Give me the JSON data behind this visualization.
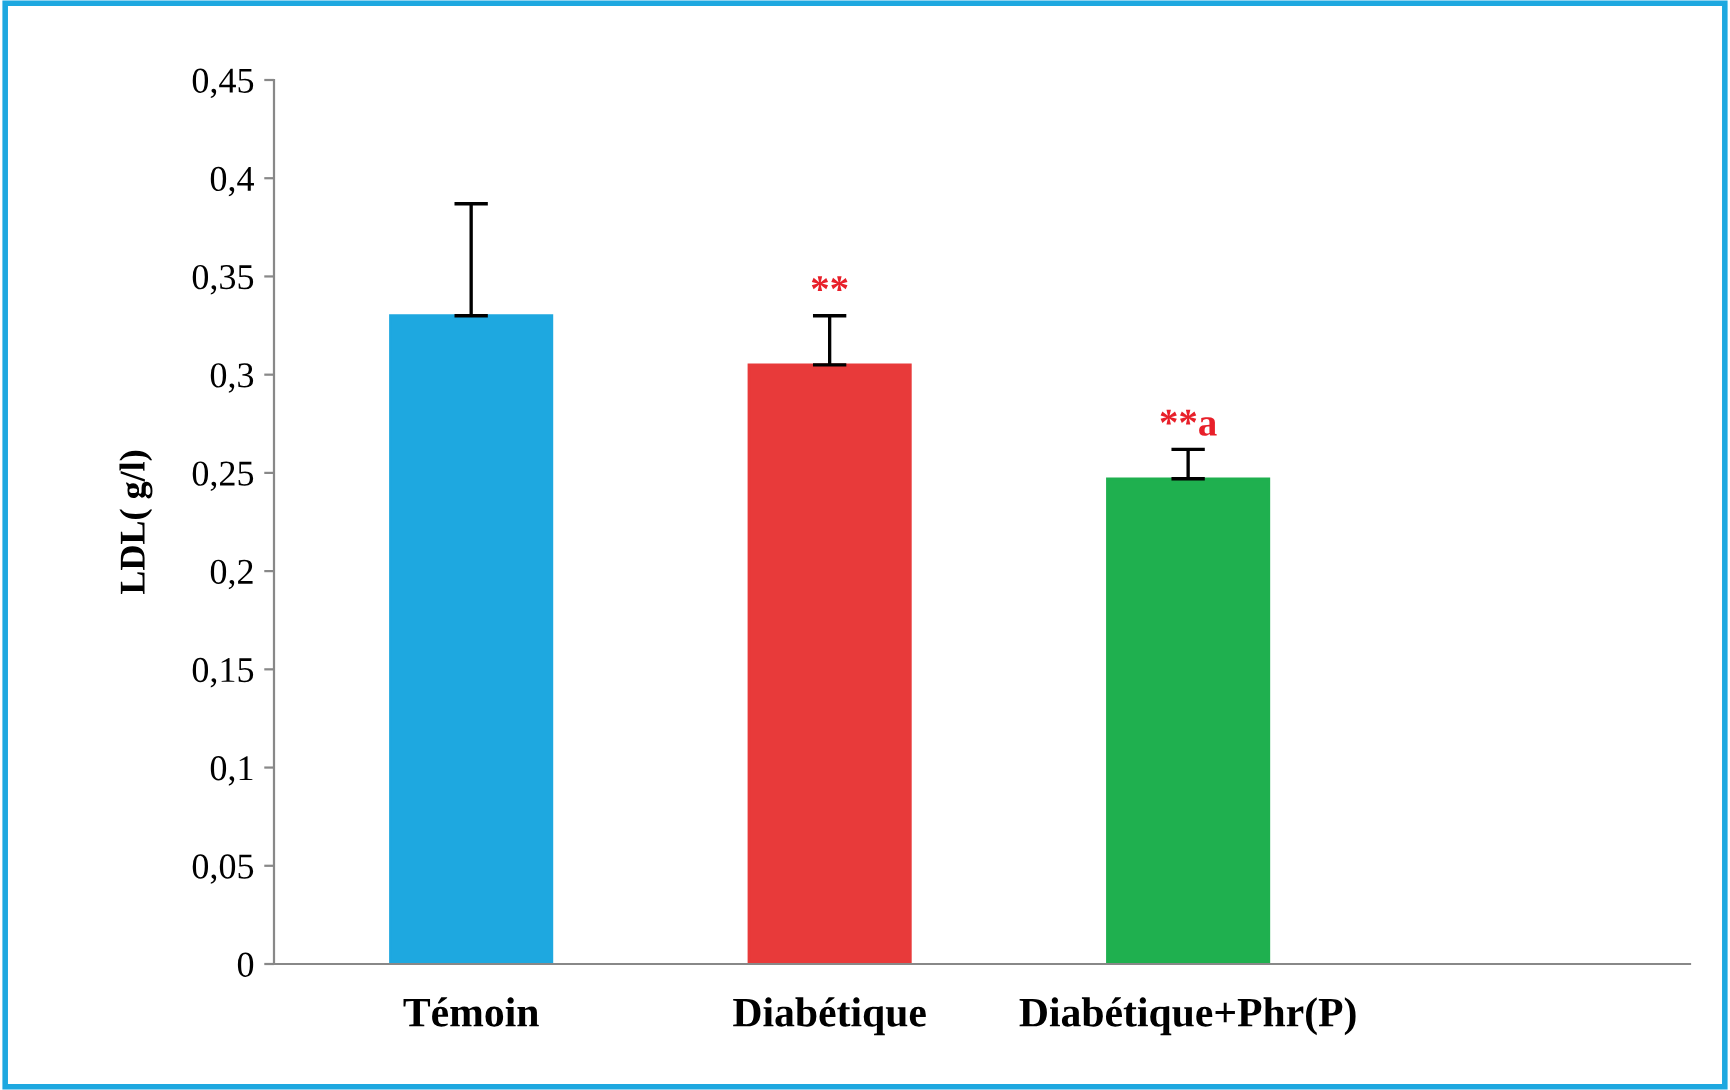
{
  "chart_data": {
    "type": "bar",
    "ylabel": "LDL( g/l)",
    "categories": [
      "Témoin",
      "Diabétique",
      "Diabétique+Phr(P)"
    ],
    "values": [
      0.33,
      0.305,
      0.247
    ],
    "errors": [
      [
        0.33,
        0.387
      ],
      [
        0.305,
        0.33
      ],
      [
        0.247,
        0.262
      ]
    ],
    "colors": [
      "#1ea8e0",
      "#e83a3a",
      "#1fb04f"
    ],
    "ylim": [
      0,
      0.45
    ],
    "yticks": [
      0,
      {
        "value": 0.05,
        "label": "0,05"
      },
      {
        "value": 0.1,
        "label": "0,1"
      },
      {
        "value": 0.15,
        "label": "0,15"
      },
      {
        "value": 0.2,
        "label": "0,2"
      },
      {
        "value": 0.25,
        "label": "0,25"
      },
      {
        "value": 0.3,
        "label": "0,3"
      },
      {
        "value": 0.35,
        "label": "0,35"
      },
      {
        "value": 0.4,
        "label": "0,4"
      },
      {
        "value": 0.45,
        "label": "0,45"
      }
    ],
    "annotations": [
      "**",
      "**a"
    ],
    "grid": false
  }
}
